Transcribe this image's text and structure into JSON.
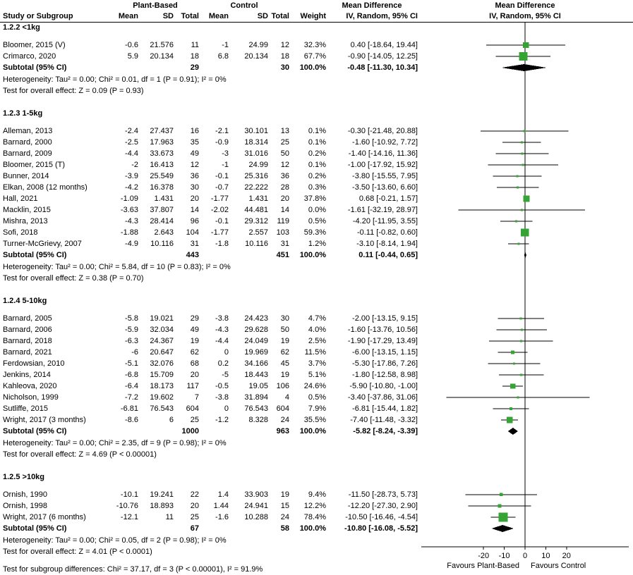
{
  "colors": {
    "marker": "#35a435",
    "diamond": "#000000",
    "line": "#000000",
    "axis": "#000000"
  },
  "chart_data": {
    "type": "forest_plot",
    "effect_measure": "Mean Difference, IV, Random, 95% CI",
    "header": {
      "experimental": "Plant-Based",
      "control": "Control",
      "effect": "Mean Difference",
      "columns": {
        "study": "Study or Subgroup",
        "mean": "Mean",
        "sd": "SD",
        "total": "Total",
        "weight": "Weight",
        "method": "IV, Random, 95% CI"
      }
    },
    "axis": {
      "min": -50,
      "max": 50,
      "ticks": [
        -20,
        -10,
        0,
        10,
        20
      ],
      "left_label": "Favours Plant-Based",
      "right_label": "Favours Control"
    },
    "footer": "Test for subgroup differences: Chi² = 37.17, df = 3 (P < 0.00001), I² = 91.9%",
    "groups": [
      {
        "label": "1.2.2 <1kg",
        "studies": [
          {
            "study": "Bloomer, 2015 (V)",
            "m1": "-0.6",
            "sd1": "21.576",
            "n1": "11",
            "m2": "-1",
            "sd2": "24.99",
            "n2": "12",
            "w": "32.3%",
            "ci": "0.40 [-18.64, 19.44]",
            "est": 0.4,
            "lo": -18.64,
            "hi": 19.44,
            "wv": 32.3
          },
          {
            "study": "Crimarco, 2020",
            "m1": "5.9",
            "sd1": "20.134",
            "n1": "18",
            "m2": "6.8",
            "sd2": "20.134",
            "n2": "18",
            "w": "67.7%",
            "ci": "-0.90 [-14.05, 12.25]",
            "est": -0.9,
            "lo": -14.05,
            "hi": 12.25,
            "wv": 67.7
          }
        ],
        "subtotal": {
          "label": "Subtotal (95% CI)",
          "n1": "29",
          "n2": "30",
          "w": "100.0%",
          "ci": "-0.48 [-11.30, 10.34]",
          "est": -0.48,
          "lo": -11.3,
          "hi": 10.34
        },
        "heterogeneity": "Heterogeneity: Tau² = 0.00; Chi² = 0.01, df = 1 (P = 0.91); I² = 0%",
        "overall": "Test for overall effect: Z = 0.09 (P = 0.93)"
      },
      {
        "label": "1.2.3 1-5kg",
        "studies": [
          {
            "study": "Alleman, 2013",
            "m1": "-2.4",
            "sd1": "27.437",
            "n1": "16",
            "m2": "-2.1",
            "sd2": "30.101",
            "n2": "13",
            "w": "0.1%",
            "ci": "-0.30 [-21.48, 20.88]",
            "est": -0.3,
            "lo": -21.48,
            "hi": 20.88,
            "wv": 0.1
          },
          {
            "study": "Barnard, 2000",
            "m1": "-2.5",
            "sd1": "17.963",
            "n1": "35",
            "m2": "-0.9",
            "sd2": "18.314",
            "n2": "25",
            "w": "0.1%",
            "ci": "-1.60 [-10.92, 7.72]",
            "est": -1.6,
            "lo": -10.92,
            "hi": 7.72,
            "wv": 0.1
          },
          {
            "study": "Barnard, 2009",
            "m1": "-4.4",
            "sd1": "33.673",
            "n1": "49",
            "m2": "-3",
            "sd2": "31.016",
            "n2": "50",
            "w": "0.2%",
            "ci": "-1.40 [-14.16, 11.36]",
            "est": -1.4,
            "lo": -14.16,
            "hi": 11.36,
            "wv": 0.2
          },
          {
            "study": "Bloomer, 2015 (T)",
            "m1": "-2",
            "sd1": "16.413",
            "n1": "12",
            "m2": "-1",
            "sd2": "24.99",
            "n2": "12",
            "w": "0.1%",
            "ci": "-1.00 [-17.92, 15.92]",
            "est": -1.0,
            "lo": -17.92,
            "hi": 15.92,
            "wv": 0.1
          },
          {
            "study": "Bunner, 2014",
            "m1": "-3.9",
            "sd1": "25.549",
            "n1": "36",
            "m2": "-0.1",
            "sd2": "25.316",
            "n2": "36",
            "w": "0.2%",
            "ci": "-3.80 [-15.55, 7.95]",
            "est": -3.8,
            "lo": -15.55,
            "hi": 7.95,
            "wv": 0.2
          },
          {
            "study": "Elkan, 2008 (12 months)",
            "m1": "-4.2",
            "sd1": "16.378",
            "n1": "30",
            "m2": "-0.7",
            "sd2": "22.222",
            "n2": "28",
            "w": "0.3%",
            "ci": "-3.50 [-13.60, 6.60]",
            "est": -3.5,
            "lo": -13.6,
            "hi": 6.6,
            "wv": 0.3
          },
          {
            "study": "Hall, 2021",
            "m1": "-1.09",
            "sd1": "1.431",
            "n1": "20",
            "m2": "-1.77",
            "sd2": "1.431",
            "n2": "20",
            "w": "37.8%",
            "ci": "0.68 [-0.21, 1.57]",
            "est": 0.68,
            "lo": -0.21,
            "hi": 1.57,
            "wv": 37.8
          },
          {
            "study": "Macklin, 2015",
            "m1": "-3.63",
            "sd1": "37.807",
            "n1": "14",
            "m2": "-2.02",
            "sd2": "44.481",
            "n2": "14",
            "w": "0.0%",
            "ci": "-1.61 [-32.19, 28.97]",
            "est": -1.61,
            "lo": -32.19,
            "hi": 28.97,
            "wv": 0.0
          },
          {
            "study": "Mishra, 2013",
            "m1": "-4.3",
            "sd1": "28.414",
            "n1": "96",
            "m2": "-0.1",
            "sd2": "29.312",
            "n2": "119",
            "w": "0.5%",
            "ci": "-4.20 [-11.95, 3.55]",
            "est": -4.2,
            "lo": -11.95,
            "hi": 3.55,
            "wv": 0.5
          },
          {
            "study": "Sofi, 2018",
            "m1": "-1.88",
            "sd1": "2.643",
            "n1": "104",
            "m2": "-1.77",
            "sd2": "2.557",
            "n2": "103",
            "w": "59.3%",
            "ci": "-0.11 [-0.82, 0.60]",
            "est": -0.11,
            "lo": -0.82,
            "hi": 0.6,
            "wv": 59.3
          },
          {
            "study": "Turner-McGrievy, 2007",
            "m1": "-4.9",
            "sd1": "10.116",
            "n1": "31",
            "m2": "-1.8",
            "sd2": "10.116",
            "n2": "31",
            "w": "1.2%",
            "ci": "-3.10 [-8.14, 1.94]",
            "est": -3.1,
            "lo": -8.14,
            "hi": 1.94,
            "wv": 1.2
          }
        ],
        "subtotal": {
          "label": "Subtotal (95% CI)",
          "n1": "443",
          "n2": "451",
          "w": "100.0%",
          "ci": "0.11 [-0.44, 0.65]",
          "est": 0.11,
          "lo": -0.44,
          "hi": 0.65
        },
        "heterogeneity": "Heterogeneity: Tau² = 0.00; Chi² = 5.84, df = 10 (P = 0.83); I² = 0%",
        "overall": "Test for overall effect: Z = 0.38 (P = 0.70)"
      },
      {
        "label": "1.2.4 5-10kg",
        "studies": [
          {
            "study": "Barnard, 2005",
            "m1": "-5.8",
            "sd1": "19.021",
            "n1": "29",
            "m2": "-3.8",
            "sd2": "24.423",
            "n2": "30",
            "w": "4.7%",
            "ci": "-2.00 [-13.15, 9.15]",
            "est": -2.0,
            "lo": -13.15,
            "hi": 9.15,
            "wv": 4.7
          },
          {
            "study": "Barnard, 2006",
            "m1": "-5.9",
            "sd1": "32.034",
            "n1": "49",
            "m2": "-4.3",
            "sd2": "29.628",
            "n2": "50",
            "w": "4.0%",
            "ci": "-1.60 [-13.76, 10.56]",
            "est": -1.6,
            "lo": -13.76,
            "hi": 10.56,
            "wv": 4.0
          },
          {
            "study": "Barnard, 2018",
            "m1": "-6.3",
            "sd1": "24.367",
            "n1": "19",
            "m2": "-4.4",
            "sd2": "24.049",
            "n2": "19",
            "w": "2.5%",
            "ci": "-1.90 [-17.29, 13.49]",
            "est": -1.9,
            "lo": -17.29,
            "hi": 13.49,
            "wv": 2.5
          },
          {
            "study": "Barnard, 2021",
            "m1": "-6",
            "sd1": "20.647",
            "n1": "62",
            "m2": "0",
            "sd2": "19.969",
            "n2": "62",
            "w": "11.5%",
            "ci": "-6.00 [-13.15, 1.15]",
            "est": -6.0,
            "lo": -13.15,
            "hi": 1.15,
            "wv": 11.5
          },
          {
            "study": "Ferdowsian, 2010",
            "m1": "-5.1",
            "sd1": "32.076",
            "n1": "68",
            "m2": "0.2",
            "sd2": "34.166",
            "n2": "45",
            "w": "3.7%",
            "ci": "-5.30 [-17.86, 7.26]",
            "est": -5.3,
            "lo": -17.86,
            "hi": 7.26,
            "wv": 3.7
          },
          {
            "study": "Jenkins, 2014",
            "m1": "-6.8",
            "sd1": "15.709",
            "n1": "20",
            "m2": "-5",
            "sd2": "18.443",
            "n2": "19",
            "w": "5.1%",
            "ci": "-1.80 [-12.58, 8.98]",
            "est": -1.8,
            "lo": -12.58,
            "hi": 8.98,
            "wv": 5.1
          },
          {
            "study": "Kahleova, 2020",
            "m1": "-6.4",
            "sd1": "18.173",
            "n1": "117",
            "m2": "-0.5",
            "sd2": "19.05",
            "n2": "106",
            "w": "24.6%",
            "ci": "-5.90 [-10.80, -1.00]",
            "est": -5.9,
            "lo": -10.8,
            "hi": -1.0,
            "wv": 24.6
          },
          {
            "study": "Nicholson, 1999",
            "m1": "-7.2",
            "sd1": "19.602",
            "n1": "7",
            "m2": "-3.8",
            "sd2": "31.894",
            "n2": "4",
            "w": "0.5%",
            "ci": "-3.40 [-37.86, 31.06]",
            "est": -3.4,
            "lo": -37.86,
            "hi": 31.06,
            "wv": 0.5
          },
          {
            "study": "Sutliffe, 2015",
            "m1": "-6.81",
            "sd1": "76.543",
            "n1": "604",
            "m2": "0",
            "sd2": "76.543",
            "n2": "604",
            "w": "7.9%",
            "ci": "-6.81 [-15.44, 1.82]",
            "est": -6.81,
            "lo": -15.44,
            "hi": 1.82,
            "wv": 7.9
          },
          {
            "study": "Wright, 2017 (3 months)",
            "m1": "-8.6",
            "sd1": "6",
            "n1": "25",
            "m2": "-1.2",
            "sd2": "8.328",
            "n2": "24",
            "w": "35.5%",
            "ci": "-7.40 [-11.48, -3.32]",
            "est": -7.4,
            "lo": -11.48,
            "hi": -3.32,
            "wv": 35.5
          }
        ],
        "subtotal": {
          "label": "Subtotal (95% CI)",
          "n1": "1000",
          "n2": "963",
          "w": "100.0%",
          "ci": "-5.82 [-8.24, -3.39]",
          "est": -5.82,
          "lo": -8.24,
          "hi": -3.39
        },
        "heterogeneity": "Heterogeneity: Tau² = 0.00; Chi² = 2.35, df = 9 (P = 0.98); I² = 0%",
        "overall": "Test for overall effect: Z = 4.69 (P < 0.00001)"
      },
      {
        "label": "1.2.5 >10kg",
        "studies": [
          {
            "study": "Ornish, 1990",
            "m1": "-10.1",
            "sd1": "19.241",
            "n1": "22",
            "m2": "1.4",
            "sd2": "33.903",
            "n2": "19",
            "w": "9.4%",
            "ci": "-11.50 [-28.73, 5.73]",
            "est": -11.5,
            "lo": -28.73,
            "hi": 5.73,
            "wv": 9.4
          },
          {
            "study": "Ornish, 1998",
            "m1": "-10.76",
            "sd1": "18.893",
            "n1": "20",
            "m2": "1.44",
            "sd2": "24.941",
            "n2": "15",
            "w": "12.2%",
            "ci": "-12.20 [-27.30, 2.90]",
            "est": -12.2,
            "lo": -27.3,
            "hi": 2.9,
            "wv": 12.2
          },
          {
            "study": "Wright, 2017 (6 months)",
            "m1": "-12.1",
            "sd1": "11",
            "n1": "25",
            "m2": "-1.6",
            "sd2": "10.288",
            "n2": "24",
            "w": "78.4%",
            "ci": "-10.50 [-16.46, -4.54]",
            "est": -10.5,
            "lo": -16.46,
            "hi": -4.54,
            "wv": 78.4
          }
        ],
        "subtotal": {
          "label": "Subtotal (95% CI)",
          "n1": "67",
          "n2": "58",
          "w": "100.0%",
          "ci": "-10.80 [-16.08, -5.52]",
          "est": -10.8,
          "lo": -16.08,
          "hi": -5.52
        },
        "heterogeneity": "Heterogeneity: Tau² = 0.00; Chi² = 0.05, df = 2 (P = 0.98); I² = 0%",
        "overall": "Test for overall effect: Z = 4.01 (P < 0.0001)"
      }
    ]
  }
}
